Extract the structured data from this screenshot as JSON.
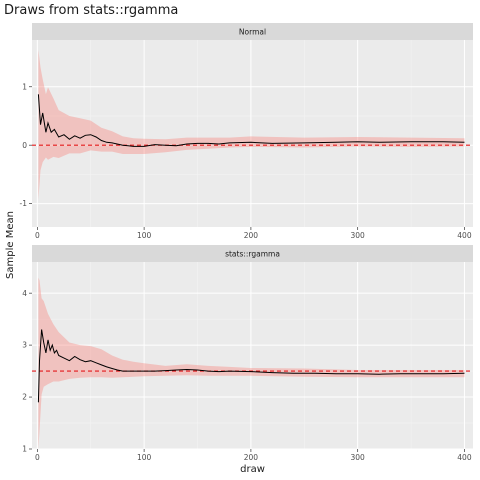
{
  "chart_data": {
    "type": "line",
    "title": "Draws from stats::rgamma",
    "xlabel": "draw",
    "ylabel": "Sample Mean",
    "xlim": [
      -5,
      408
    ],
    "xticks": [
      0,
      100,
      200,
      300,
      400
    ],
    "ribbon_color": "#f8766d",
    "line_color": "#000000",
    "reference_line_color": "#e41a1c",
    "panels": [
      {
        "strip": "Normal",
        "reference_line": 0,
        "ylim": [
          -1.4,
          1.8
        ],
        "yticks": [
          -1,
          0,
          1
        ],
        "mean": {
          "x": [
            1,
            3,
            5,
            8,
            10,
            13,
            16,
            20,
            25,
            30,
            35,
            40,
            45,
            50,
            55,
            60,
            65,
            70,
            80,
            90,
            100,
            110,
            120,
            130,
            140,
            150,
            160,
            170,
            180,
            200,
            220,
            250,
            280,
            300,
            320,
            350,
            380,
            400
          ],
          "y": [
            0.87,
            0.35,
            0.55,
            0.22,
            0.38,
            0.22,
            0.27,
            0.14,
            0.18,
            0.1,
            0.16,
            0.12,
            0.17,
            0.18,
            0.14,
            0.08,
            0.05,
            0.04,
            0.0,
            -0.02,
            -0.02,
            0.01,
            0.0,
            -0.01,
            0.02,
            0.03,
            0.03,
            0.02,
            0.04,
            0.05,
            0.03,
            0.04,
            0.05,
            0.06,
            0.05,
            0.06,
            0.06,
            0.05
          ]
        },
        "band": {
          "x": [
            1,
            3,
            5,
            8,
            10,
            15,
            20,
            30,
            40,
            50,
            60,
            70,
            80,
            90,
            100,
            120,
            140,
            160,
            180,
            200,
            250,
            300,
            350,
            400
          ],
          "lower": [
            -0.93,
            -0.43,
            -0.29,
            -0.21,
            -0.25,
            -0.2,
            -0.22,
            -0.14,
            -0.14,
            -0.09,
            -0.11,
            -0.11,
            -0.15,
            -0.15,
            -0.15,
            -0.12,
            -0.08,
            -0.06,
            -0.04,
            -0.03,
            -0.04,
            -0.02,
            -0.03,
            -0.02
          ],
          "upper": [
            1.63,
            1.33,
            1.13,
            0.87,
            0.99,
            0.8,
            0.6,
            0.5,
            0.46,
            0.42,
            0.3,
            0.24,
            0.15,
            0.12,
            0.11,
            0.1,
            0.13,
            0.13,
            0.13,
            0.15,
            0.13,
            0.14,
            0.13,
            0.12
          ]
        }
      },
      {
        "strip": "stats::rgamma",
        "reference_line": 2.5,
        "ylim": [
          1,
          4.6
        ],
        "yticks": [
          1,
          2,
          3,
          4
        ],
        "mean": {
          "x": [
            1,
            2,
            4,
            6,
            8,
            10,
            12,
            14,
            16,
            18,
            20,
            25,
            30,
            35,
            40,
            45,
            50,
            55,
            60,
            65,
            70,
            75,
            80,
            90,
            100,
            110,
            120,
            130,
            140,
            150,
            160,
            170,
            180,
            200,
            220,
            240,
            260,
            280,
            300,
            320,
            340,
            360,
            380,
            400
          ],
          "y": [
            1.9,
            2.7,
            3.3,
            3.05,
            2.85,
            3.1,
            2.9,
            3.0,
            2.85,
            2.9,
            2.8,
            2.75,
            2.7,
            2.78,
            2.72,
            2.68,
            2.7,
            2.66,
            2.62,
            2.58,
            2.55,
            2.52,
            2.5,
            2.5,
            2.5,
            2.5,
            2.51,
            2.52,
            2.53,
            2.52,
            2.5,
            2.49,
            2.5,
            2.49,
            2.47,
            2.46,
            2.46,
            2.45,
            2.45,
            2.44,
            2.45,
            2.45,
            2.45,
            2.46
          ]
        },
        "band": {
          "x": [
            1,
            2,
            4,
            6,
            10,
            15,
            20,
            30,
            40,
            50,
            60,
            70,
            80,
            90,
            100,
            120,
            140,
            160,
            180,
            200,
            250,
            300,
            350,
            400
          ],
          "lower": [
            1.0,
            1.35,
            2.05,
            2.2,
            2.25,
            2.3,
            2.3,
            2.35,
            2.37,
            2.38,
            2.38,
            2.37,
            2.38,
            2.39,
            2.4,
            2.41,
            2.42,
            2.41,
            2.41,
            2.41,
            2.39,
            2.38,
            2.38,
            2.38
          ],
          "upper": [
            4.3,
            4.25,
            3.9,
            3.85,
            3.6,
            3.4,
            3.25,
            3.05,
            3.0,
            2.98,
            2.92,
            2.8,
            2.72,
            2.68,
            2.65,
            2.6,
            2.63,
            2.6,
            2.58,
            2.56,
            2.55,
            2.52,
            2.52,
            2.52
          ]
        }
      }
    ]
  }
}
